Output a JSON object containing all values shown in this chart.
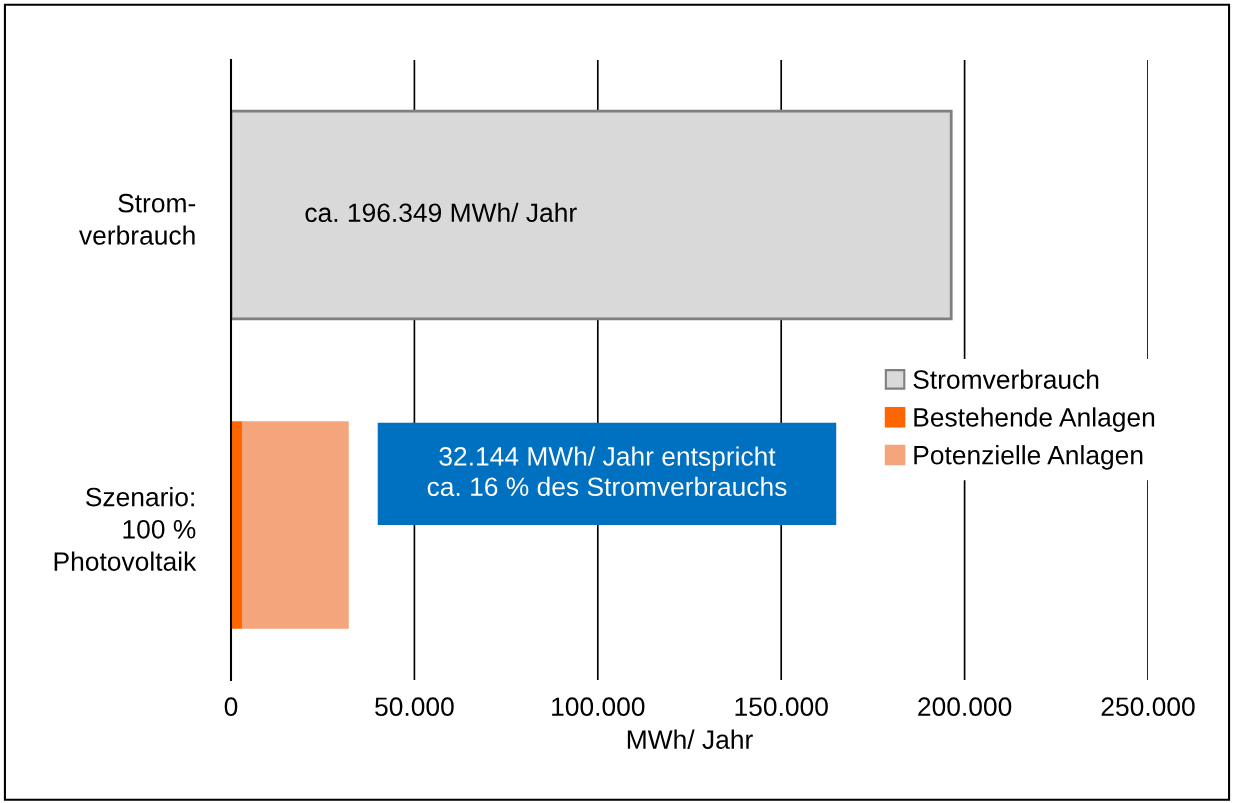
{
  "chart_data": {
    "type": "bar",
    "orientation": "horizontal",
    "stacked": true,
    "categories": [
      "Strom-\nverbrauch",
      "Szenario:\n100 %\nPhotovoltaik"
    ],
    "series": [
      {
        "name": "Stromverbrauch",
        "color": "#d9d9d9",
        "values": [
          196349,
          null
        ]
      },
      {
        "name": "Bestehende Anlagen",
        "color": "#ff6600",
        "values": [
          null,
          3000
        ]
      },
      {
        "name": "Potenzielle Anlagen",
        "color": "#f4a57c",
        "values": [
          null,
          29100
        ]
      }
    ],
    "xlabel": "MWh/ Jahr",
    "xlim": [
      0,
      250000
    ],
    "xticks": [
      {
        "value": 0,
        "label": "0"
      },
      {
        "value": 50000,
        "label": "50.000"
      },
      {
        "value": 100000,
        "label": "100.000"
      },
      {
        "value": 150000,
        "label": "150.000"
      },
      {
        "value": 200000,
        "label": "200.000"
      },
      {
        "value": 250000,
        "label": "250.000"
      }
    ],
    "grid": "x",
    "legend": "right",
    "annotations": [
      "ca. 196.349 MWh/ Jahr",
      "32.144 MWh/ Jahr entspricht\nca. 16 % des Stromverbrauchs"
    ]
  }
}
